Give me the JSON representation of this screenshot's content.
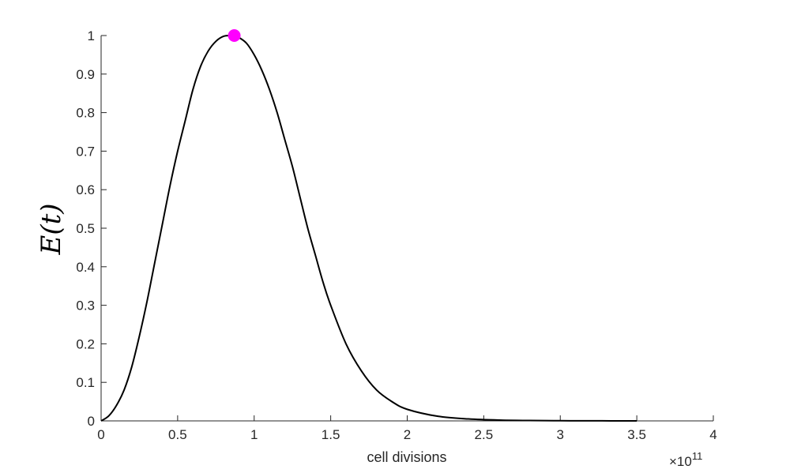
{
  "chart_data": {
    "type": "line",
    "title": "",
    "xlabel": "cell divisions",
    "ylabel": "E(t)",
    "x_multiplier_label": "×10",
    "x_multiplier_exponent": "11",
    "xlim": [
      0,
      4
    ],
    "ylim": [
      0,
      1
    ],
    "xticks": [
      "0",
      "0.5",
      "1",
      "1.5",
      "2",
      "2.5",
      "3",
      "3.5",
      "4"
    ],
    "yticks": [
      "0",
      "0.1",
      "0.2",
      "0.3",
      "0.4",
      "0.5",
      "0.6",
      "0.7",
      "0.8",
      "0.9",
      "1"
    ],
    "grid": false,
    "series": [
      {
        "color": "#000000",
        "x": [
          0,
          0.05,
          0.1,
          0.15,
          0.2,
          0.25,
          0.3,
          0.35,
          0.4,
          0.45,
          0.5,
          0.55,
          0.6,
          0.65,
          0.7,
          0.75,
          0.8,
          0.85,
          0.87,
          0.9,
          0.95,
          1.0,
          1.05,
          1.1,
          1.15,
          1.2,
          1.25,
          1.3,
          1.35,
          1.4,
          1.45,
          1.5,
          1.6,
          1.7,
          1.8,
          1.9,
          2.0,
          2.2,
          2.4,
          2.6,
          2.8,
          3.0,
          3.2,
          3.5
        ],
        "y": [
          0,
          0.013,
          0.04,
          0.08,
          0.14,
          0.22,
          0.31,
          0.41,
          0.51,
          0.61,
          0.7,
          0.78,
          0.86,
          0.92,
          0.96,
          0.985,
          0.998,
          1.0,
          1.0,
          0.995,
          0.98,
          0.95,
          0.91,
          0.86,
          0.8,
          0.73,
          0.66,
          0.58,
          0.5,
          0.43,
          0.36,
          0.3,
          0.2,
          0.13,
          0.08,
          0.05,
          0.03,
          0.012,
          0.005,
          0.002,
          0.001,
          0.0005,
          0.0002,
          0.0
        ]
      }
    ],
    "markers": [
      {
        "x": 0.87,
        "y": 1.0,
        "color": "#ff00ff"
      }
    ]
  }
}
